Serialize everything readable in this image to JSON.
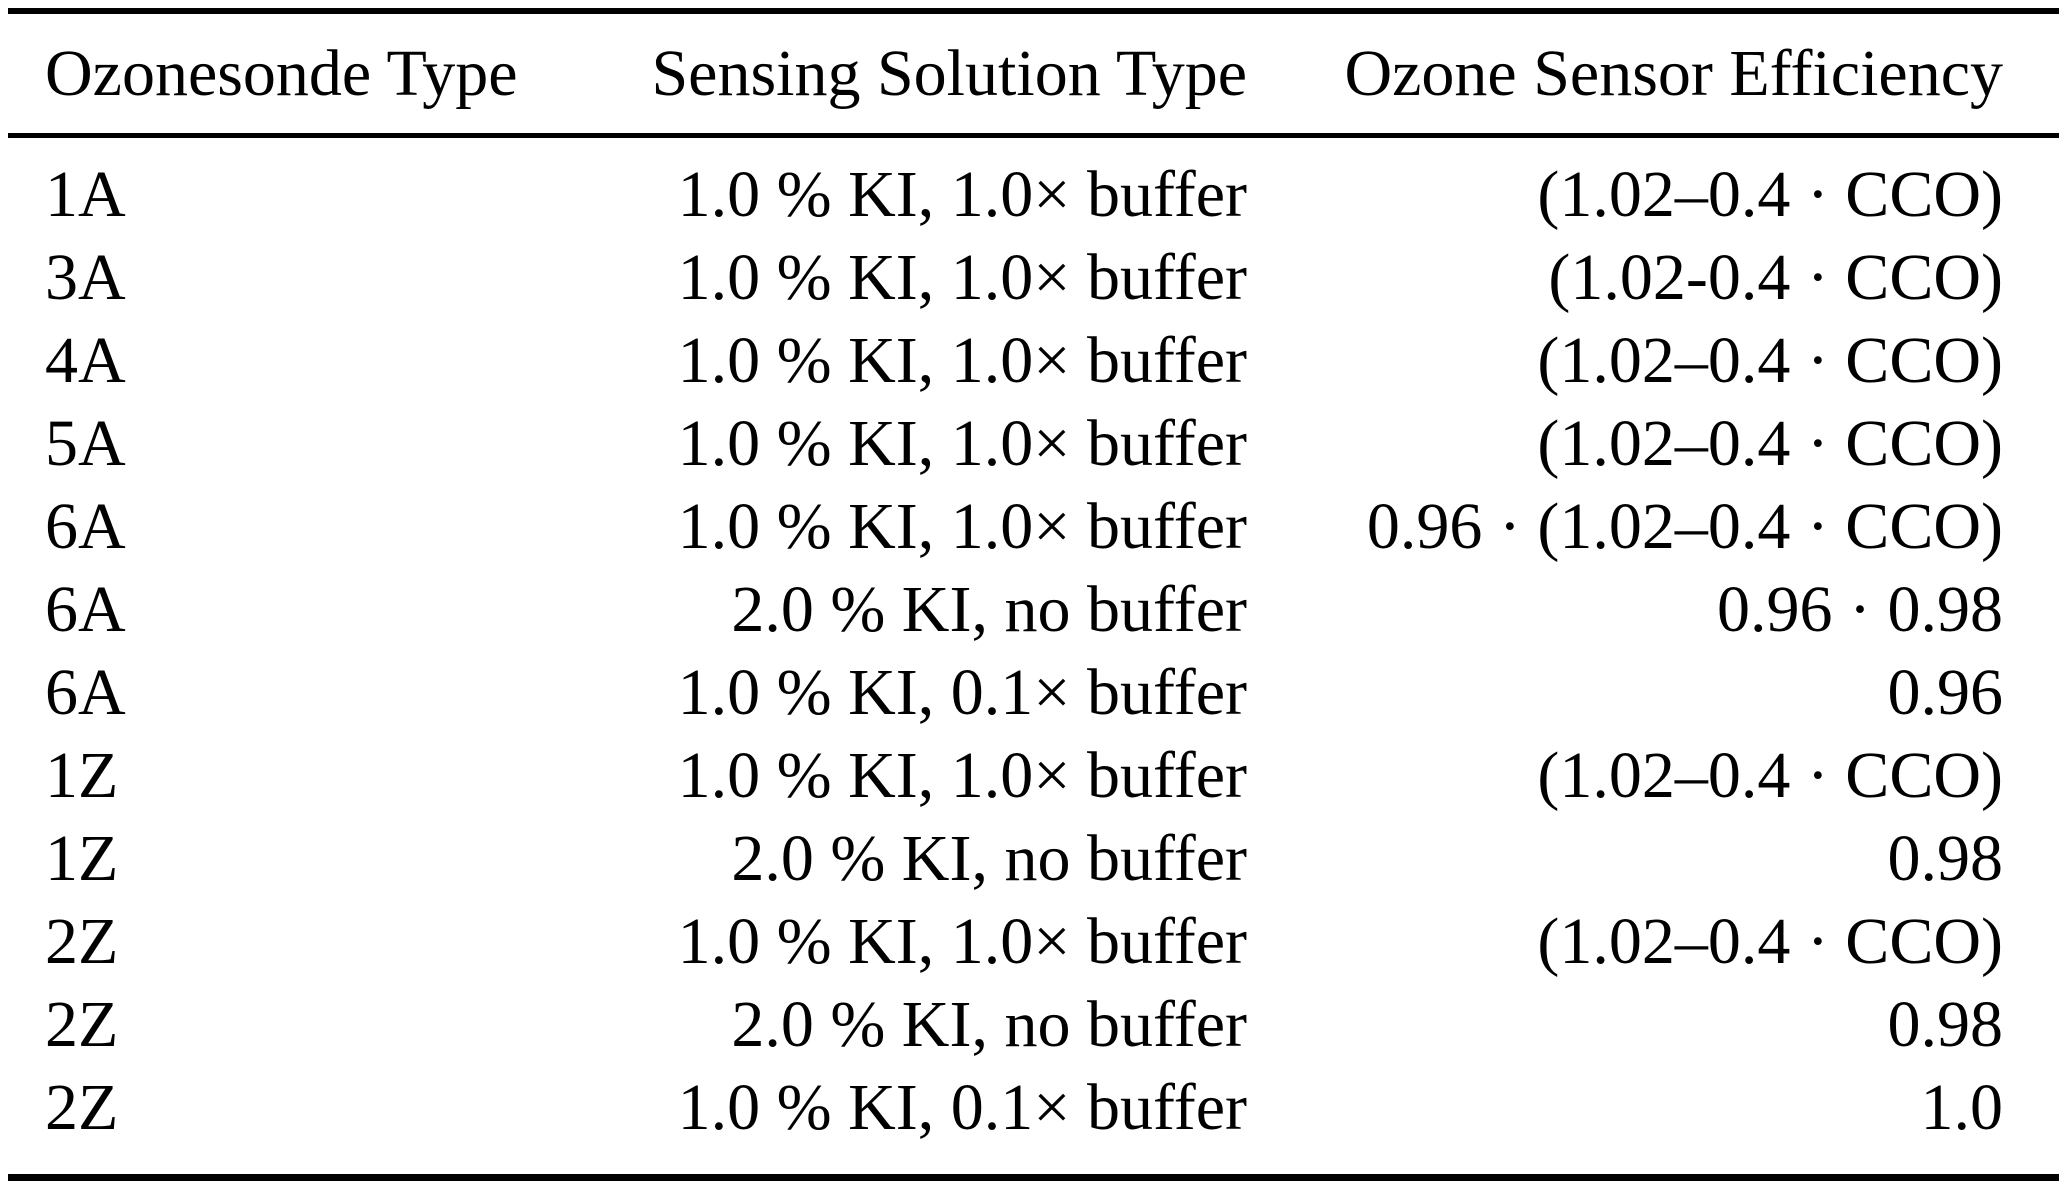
{
  "colors": {
    "background": "#ffffff",
    "text": "#000000",
    "rule": "#000000"
  },
  "table": {
    "columns": [
      "Ozonesonde Type",
      "Sensing Solution Type",
      "Ozone Sensor Efficiency"
    ],
    "rows": [
      [
        "1A",
        "1.0 % KI, 1.0× buffer",
        "(1.02–0.4 · CCO)"
      ],
      [
        "3A",
        "1.0 % KI, 1.0× buffer",
        "(1.02-0.4 · CCO)"
      ],
      [
        "4A",
        "1.0 % KI, 1.0× buffer",
        "(1.02–0.4 · CCO)"
      ],
      [
        "5A",
        "1.0 % KI, 1.0× buffer",
        "(1.02–0.4 · CCO)"
      ],
      [
        "6A",
        "1.0 % KI, 1.0× buffer",
        "0.96 · (1.02–0.4 · CCO)"
      ],
      [
        "6A",
        "2.0 % KI, no buffer",
        "0.96 · 0.98"
      ],
      [
        "6A",
        "1.0 % KI, 0.1× buffer",
        "0.96"
      ],
      [
        "1Z",
        "1.0 % KI, 1.0× buffer",
        "(1.02–0.4 · CCO)"
      ],
      [
        "1Z",
        "2.0 % KI, no buffer",
        "0.98"
      ],
      [
        "2Z",
        "1.0 % KI, 1.0× buffer",
        "(1.02–0.4 · CCO)"
      ],
      [
        "2Z",
        "2.0 % KI, no buffer",
        "0.98"
      ],
      [
        "2Z",
        "1.0 % KI, 0.1× buffer",
        "1.0"
      ]
    ]
  }
}
